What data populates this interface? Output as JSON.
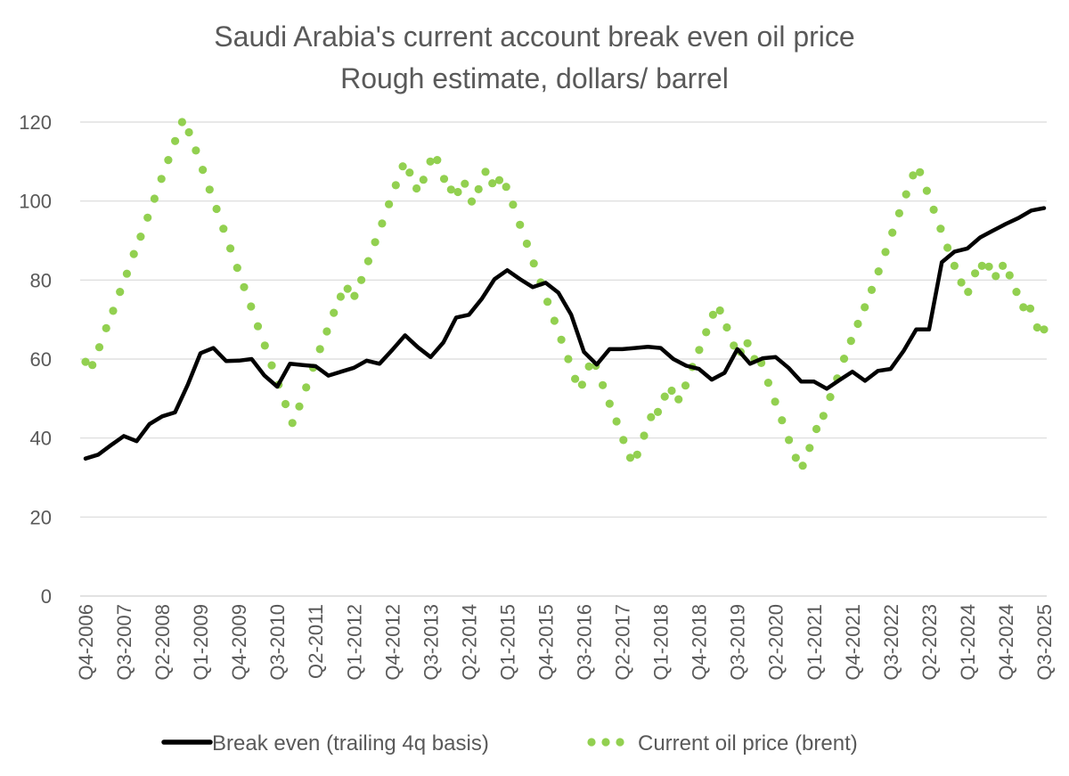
{
  "chart_data": {
    "type": "line",
    "title": "Saudi Arabia's current account break even oil price",
    "subtitle": "Rough estimate, dollars/ barrel",
    "xlabel": "",
    "ylabel": "",
    "ylim": [
      0,
      120
    ],
    "yticks": [
      0,
      20,
      40,
      60,
      80,
      100,
      120
    ],
    "grid": true,
    "legend_position": "bottom",
    "x_labels_shown": [
      "Q4-2006",
      "Q3-2007",
      "Q2-2008",
      "Q1-2009",
      "Q4-2009",
      "Q3-2010",
      "Q2-2011",
      "Q1-2012",
      "Q4-2012",
      "Q3-2013",
      "Q2-2014",
      "Q1-2015",
      "Q4-2015",
      "Q3-2016",
      "Q2-2017",
      "Q1-2018",
      "Q4-2018",
      "Q3-2019",
      "Q2-2020",
      "Q1-2021",
      "Q4-2021",
      "Q3-2022",
      "Q2-2023",
      "Q1-2024",
      "Q4-2024",
      "Q3-2025"
    ],
    "series": [
      {
        "name": "Break even (trailing 4q basis)",
        "style": "solid",
        "color": "#000000",
        "values": [
          34.8,
          35.8,
          38.2,
          40.5,
          39.2,
          43.5,
          45.5,
          46.5,
          53.5,
          61.5,
          62.8,
          59.5,
          59.6,
          60,
          55.8,
          53,
          58.8,
          58.5,
          58.2,
          55.8,
          56.8,
          57.8,
          59.6,
          58.8,
          62.3,
          66,
          63,
          60.5,
          64.2,
          70.5,
          71.2,
          75.2,
          80.2,
          82.5,
          80.2,
          78.2,
          79.3,
          76.8,
          71.2,
          61.8,
          58.6,
          62.5,
          62.5,
          62.8,
          63.1,
          62.8,
          60,
          58.3,
          57.5,
          54.8,
          56.5,
          62.5,
          58.8,
          60.2,
          60.5,
          57.8,
          54.3,
          54.3,
          52.5,
          54.7,
          56.8,
          54.5,
          57,
          57.5,
          62,
          67.5,
          67.5,
          84.5,
          87.2,
          88,
          90.8,
          92.5,
          94.2,
          95.7,
          97.6,
          98.2
        ]
      },
      {
        "name": "Current oil price (brent)",
        "style": "dotted",
        "color": "#92d050",
        "values": [
          59.3,
          58.5,
          63,
          67.8,
          72.2,
          77,
          81.6,
          86.6,
          91,
          95.8,
          100.6,
          105.6,
          110.4,
          115.2,
          120,
          117.4,
          112.8,
          107.9,
          102.9,
          98,
          93,
          88,
          83.1,
          78.2,
          73.3,
          68.3,
          63.4,
          58.4,
          53.5,
          48.6,
          43.8,
          48,
          52.8,
          57.8,
          62.5,
          67,
          71.7,
          75.8,
          77.8,
          76,
          80,
          84.8,
          89.6,
          94.3,
          99.2,
          104,
          108.8,
          107.2,
          103.2,
          105.4,
          110,
          110.4,
          105.6,
          102.9,
          102.3,
          104.4,
          99.9,
          103,
          107.4,
          104.5,
          105.3,
          103.6,
          99.1,
          94,
          89.2,
          84.2,
          79.4,
          74.5,
          69.7,
          64.9,
          60,
          55,
          53.5,
          58.1,
          58.3,
          53.4,
          48.7,
          44.2,
          39.5,
          35,
          35.8,
          40.6,
          45.3,
          46.6,
          50.5,
          52,
          49.8,
          53.3,
          58,
          62.3,
          66.8,
          71.2,
          72.3,
          68,
          63.4,
          61.8,
          64,
          60,
          59,
          54,
          49.2,
          44.5,
          39.5,
          35,
          33,
          37.5,
          42.3,
          45.6,
          50.4,
          55.1,
          60.1,
          64.6,
          68.9,
          73.1,
          77.5,
          82.2,
          87.1,
          92,
          96.9,
          101.7,
          106.5,
          107.3,
          102.6,
          97.8,
          93,
          88.2,
          83.6,
          79.4,
          77,
          81.7,
          83.6,
          83.4,
          81,
          83.6,
          81.2,
          77,
          73.1,
          72.8,
          68,
          67.5
        ]
      }
    ]
  }
}
